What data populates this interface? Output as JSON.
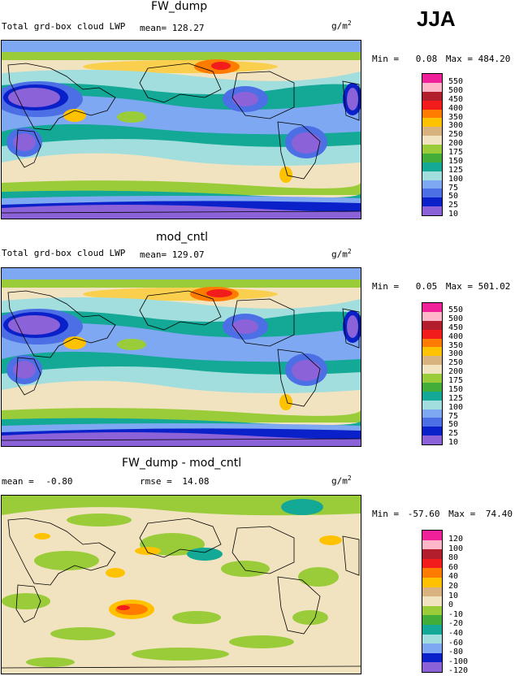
{
  "header": {
    "season": "JJA"
  },
  "panels": [
    {
      "title": "FW_dump",
      "left_label": "Total grd-box cloud LWP",
      "stat1_label": "mean=",
      "stat1_value": "128.27",
      "stat2_label": "",
      "stat2_value": "",
      "unit_base": "g/m",
      "unit_exp": "2",
      "min_label": "Min =",
      "min_value": "0.08",
      "max_label": "Max =",
      "max_value": "484.20",
      "colorbar_labels": [
        "550",
        "500",
        "450",
        "400",
        "350",
        "300",
        "250",
        "200",
        "175",
        "150",
        "125",
        "100",
        "75",
        "50",
        "25",
        "10"
      ],
      "colorbar_colors": [
        "#f0209a",
        "#ffb6c8",
        "#b21e2c",
        "#f21c1c",
        "#ff7c00",
        "#ffc200",
        "#d9b37f",
        "#f2e3c0",
        "#9acc3a",
        "#43ad3a",
        "#14a896",
        "#a2dede",
        "#7fa8f2",
        "#4c6fe6",
        "#0a20c8",
        "#8c62d8"
      ]
    },
    {
      "title": "mod_cntl",
      "left_label": "Total grd-box cloud LWP",
      "stat1_label": "mean=",
      "stat1_value": "129.07",
      "stat2_label": "",
      "stat2_value": "",
      "unit_base": "g/m",
      "unit_exp": "2",
      "min_label": "Min =",
      "min_value": "0.05",
      "max_label": "Max =",
      "max_value": "501.02",
      "colorbar_labels": [
        "550",
        "500",
        "450",
        "400",
        "350",
        "300",
        "250",
        "200",
        "175",
        "150",
        "125",
        "100",
        "75",
        "50",
        "25",
        "10"
      ],
      "colorbar_colors": [
        "#f0209a",
        "#ffb6c8",
        "#b21e2c",
        "#f21c1c",
        "#ff7c00",
        "#ffc200",
        "#d9b37f",
        "#f2e3c0",
        "#9acc3a",
        "#43ad3a",
        "#14a896",
        "#a2dede",
        "#7fa8f2",
        "#4c6fe6",
        "#0a20c8",
        "#8c62d8"
      ]
    },
    {
      "title": "FW_dump - mod_cntl",
      "left_label": "",
      "stat1_label": "mean =",
      "stat1_value": "-0.80",
      "stat2_label": "rmse =",
      "stat2_value": "14.08",
      "unit_base": "g/m",
      "unit_exp": "2",
      "min_label": "Min =",
      "min_value": "-57.60",
      "max_label": "Max =",
      "max_value": "74.40",
      "colorbar_labels": [
        "120",
        "100",
        "80",
        "60",
        "40",
        "20",
        "10",
        "0",
        "-10",
        "-20",
        "-40",
        "-60",
        "-80",
        "-100",
        "-120"
      ],
      "colorbar_colors": [
        "#f0209a",
        "#ffb6c8",
        "#b21e2c",
        "#f21c1c",
        "#ff7c00",
        "#ffc200",
        "#d9b37f",
        "#f2e3c0",
        "#9acc3a",
        "#43ad3a",
        "#14a896",
        "#a2dede",
        "#7fa8f2",
        "#0a20c8",
        "#8c62d8"
      ]
    }
  ]
}
